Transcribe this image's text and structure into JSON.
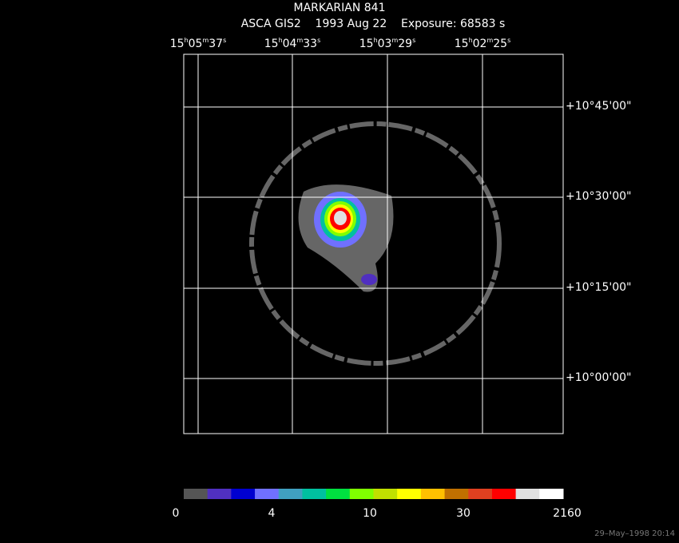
{
  "header": {
    "title": "MARKARIAN 841",
    "subtitle": "ASCA GIS2    1993 Aug 22    Exposure: 68583 s"
  },
  "ra_labels": [
    [
      "15",
      "h",
      "05",
      "m",
      "37",
      "s"
    ],
    [
      "15",
      "h",
      "04",
      "m",
      "33",
      "s"
    ],
    [
      "15",
      "h",
      "03",
      "m",
      "29",
      "s"
    ],
    [
      "15",
      "h",
      "02",
      "m",
      "25",
      "s"
    ]
  ],
  "dec_labels": [
    "+10°45'00\"",
    "+10°30'00\"",
    "+10°15'00\"",
    "+10°00'00\""
  ],
  "colorbar_labels": [
    "0",
    "4",
    "10",
    "30",
    "2160"
  ],
  "timestamp": "29–May–1998 20:14"
}
